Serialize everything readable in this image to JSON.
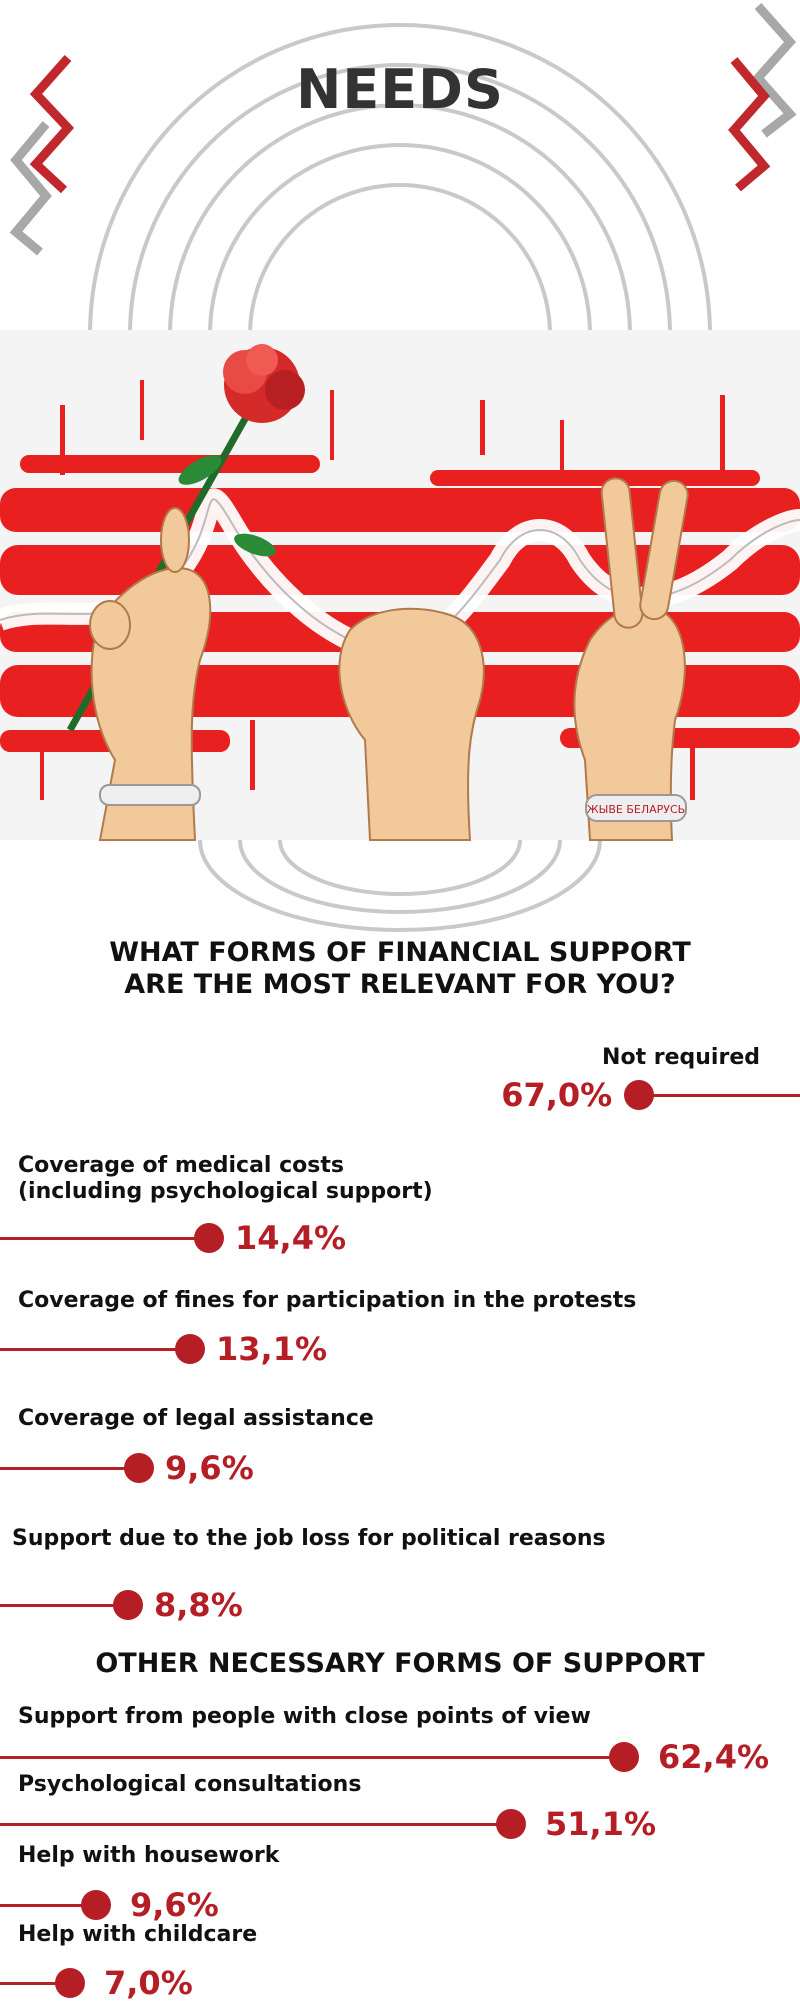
{
  "header": {
    "title": "NEEDS"
  },
  "illustration": {
    "wristband_text": "ЖЫВЕ БЕЛАРУСЬ",
    "accent_color": "#e8201f",
    "skin_color": "#f2c99b"
  },
  "colors": {
    "accent": "#b41e24",
    "decor_gray": "#a8a8a8",
    "ring_gray": "#c9c9c9"
  },
  "chart_data": [
    {
      "type": "bar",
      "title": "WHAT FORMS OF FINANCIAL SUPPORT ARE THE MOST RELEVANT FOR YOU?",
      "title_lines": [
        "WHAT FORMS OF FINANCIAL SUPPORT",
        "ARE THE MOST RELEVANT FOR YOU?"
      ],
      "unit": "%",
      "categories": [
        "Not required",
        "Coverage of medical costs (including psychological support)",
        "Coverage of fines for participation in the protests",
        "Coverage of legal assistance",
        "Support due to the job loss for political reasons"
      ],
      "values": [
        67.0,
        14.4,
        13.1,
        9.6,
        8.8
      ],
      "value_labels": [
        "67,0%",
        "14,4%",
        "13,1%",
        "9,6%",
        "8,8%"
      ]
    },
    {
      "type": "bar",
      "title": "OTHER NECESSARY FORMS OF SUPPORT",
      "unit": "%",
      "categories": [
        "Support from people with close points of view",
        "Psychological consultations",
        "Help with housework",
        "Help with childcare"
      ],
      "values": [
        62.4,
        51.1,
        9.6,
        7.0
      ],
      "value_labels": [
        "62,4%",
        "51,1%",
        "9,6%",
        "7,0%"
      ]
    }
  ],
  "label_lines": {
    "medical_1": "Coverage of medical costs",
    "medical_2": "(including psychological support)"
  }
}
